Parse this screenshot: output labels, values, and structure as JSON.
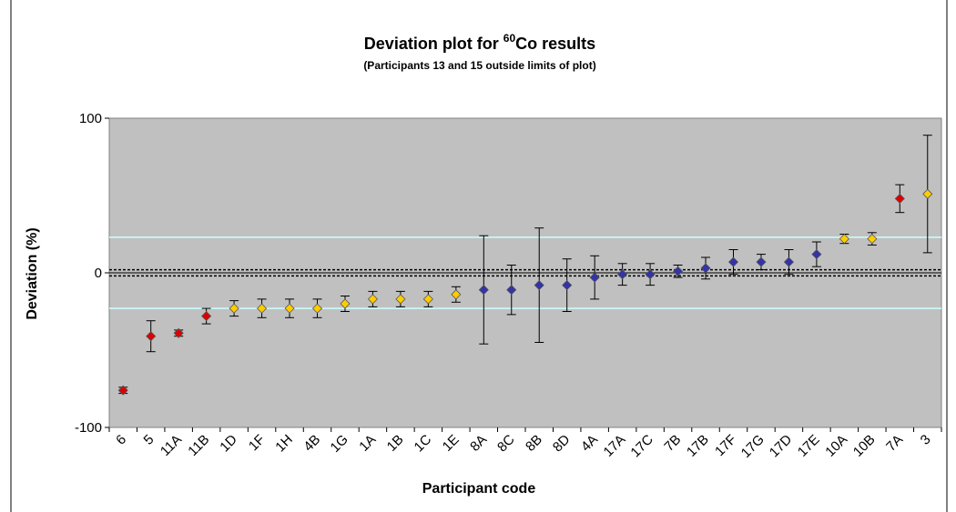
{
  "chart_data": {
    "type": "scatter",
    "title_prefix": "Deviation plot for ",
    "title_superscript": "60",
    "title_suffix": "Co results",
    "subtitle": "(Participants 13 and 15 outside limits of plot)",
    "xlabel": "Participant code",
    "ylabel": "Deviation (%)",
    "ylim": [
      -100,
      100
    ],
    "yticks": [
      -100,
      0,
      100
    ],
    "reference_lines": {
      "upper_limit": 23,
      "lower_limit": -23,
      "upper_dotted": 2,
      "lower_dotted": -2,
      "zero": 0
    },
    "colors": {
      "background": "#c0c0c0",
      "limit_line": "#ccffff",
      "red": "#dd0000",
      "yellow": "#ffcc00",
      "blue": "#3333aa",
      "errorbar": "#000000",
      "marker_outline": "#555555"
    },
    "points": [
      {
        "label": "6",
        "y": -76,
        "err": 2,
        "color": "red"
      },
      {
        "label": "5",
        "y": -41,
        "err": 10,
        "color": "red"
      },
      {
        "label": "11A",
        "y": -39,
        "err": 2,
        "color": "red"
      },
      {
        "label": "11B",
        "y": -28,
        "err": 5,
        "color": "red"
      },
      {
        "label": "1D",
        "y": -23,
        "err": 5,
        "color": "yellow"
      },
      {
        "label": "1F",
        "y": -23,
        "err": 6,
        "color": "yellow"
      },
      {
        "label": "1H",
        "y": -23,
        "err": 6,
        "color": "yellow"
      },
      {
        "label": "4B",
        "y": -23,
        "err": 6,
        "color": "yellow"
      },
      {
        "label": "1G",
        "y": -20,
        "err": 5,
        "color": "yellow"
      },
      {
        "label": "1A",
        "y": -17,
        "err": 5,
        "color": "yellow"
      },
      {
        "label": "1B",
        "y": -17,
        "err": 5,
        "color": "yellow"
      },
      {
        "label": "1C",
        "y": -17,
        "err": 5,
        "color": "yellow"
      },
      {
        "label": "1E",
        "y": -14,
        "err": 5,
        "color": "yellow"
      },
      {
        "label": "8A",
        "y": -11,
        "err": 35,
        "color": "blue"
      },
      {
        "label": "8C",
        "y": -11,
        "err": 16,
        "color": "blue"
      },
      {
        "label": "8B",
        "y": -8,
        "err": 37,
        "color": "blue"
      },
      {
        "label": "8D",
        "y": -8,
        "err": 17,
        "color": "blue"
      },
      {
        "label": "4A",
        "y": -3,
        "err": 14,
        "color": "blue"
      },
      {
        "label": "17A",
        "y": -1,
        "err": 7,
        "color": "blue"
      },
      {
        "label": "17C",
        "y": -1,
        "err": 7,
        "color": "blue"
      },
      {
        "label": "7B",
        "y": 1,
        "err": 4,
        "color": "blue"
      },
      {
        "label": "17B",
        "y": 3,
        "err": 7,
        "color": "blue"
      },
      {
        "label": "17F",
        "y": 7,
        "err": 8,
        "color": "blue"
      },
      {
        "label": "17G",
        "y": 7,
        "err": 5,
        "color": "blue"
      },
      {
        "label": "17D",
        "y": 7,
        "err": 8,
        "color": "blue"
      },
      {
        "label": "17E",
        "y": 12,
        "err": 8,
        "color": "blue"
      },
      {
        "label": "10A",
        "y": 22,
        "err": 3,
        "color": "yellow"
      },
      {
        "label": "10B",
        "y": 22,
        "err": 4,
        "color": "yellow"
      },
      {
        "label": "7A",
        "y": 48,
        "err": 9,
        "color": "red"
      },
      {
        "label": "3",
        "y": 51,
        "err": 38,
        "color": "yellow"
      }
    ]
  }
}
